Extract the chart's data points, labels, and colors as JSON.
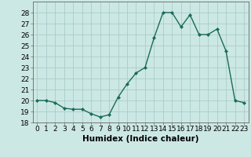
{
  "x": [
    0,
    1,
    2,
    3,
    4,
    5,
    6,
    7,
    8,
    9,
    10,
    11,
    12,
    13,
    14,
    15,
    16,
    17,
    18,
    19,
    20,
    21,
    22,
    23
  ],
  "y": [
    20.0,
    20.0,
    19.8,
    19.3,
    19.2,
    19.2,
    18.8,
    18.5,
    18.7,
    20.3,
    21.5,
    22.5,
    23.0,
    25.7,
    28.0,
    28.0,
    26.7,
    27.8,
    26.0,
    26.0,
    26.5,
    24.5,
    20.0,
    19.8
  ],
  "line_color": "#1a6b5a",
  "marker": "D",
  "marker_size": 2.0,
  "linewidth": 1.0,
  "xlabel": "Humidex (Indice chaleur)",
  "ylim": [
    18,
    29
  ],
  "xlim": [
    -0.5,
    23.5
  ],
  "yticks": [
    18,
    19,
    20,
    21,
    22,
    23,
    24,
    25,
    26,
    27,
    28
  ],
  "xticks": [
    0,
    1,
    2,
    3,
    4,
    5,
    6,
    7,
    8,
    9,
    10,
    11,
    12,
    13,
    14,
    15,
    16,
    17,
    18,
    19,
    20,
    21,
    22,
    23
  ],
  "xtick_labels": [
    "0",
    "1",
    "2",
    "3",
    "4",
    "5",
    "6",
    "7",
    "8",
    "9",
    "10",
    "11",
    "12",
    "13",
    "14",
    "15",
    "16",
    "17",
    "18",
    "19",
    "20",
    "21",
    "22",
    "23"
  ],
  "grid_color": "#aaccca",
  "bg_color": "#cce8e4",
  "tick_fontsize": 6.5,
  "xlabel_fontsize": 7.5
}
